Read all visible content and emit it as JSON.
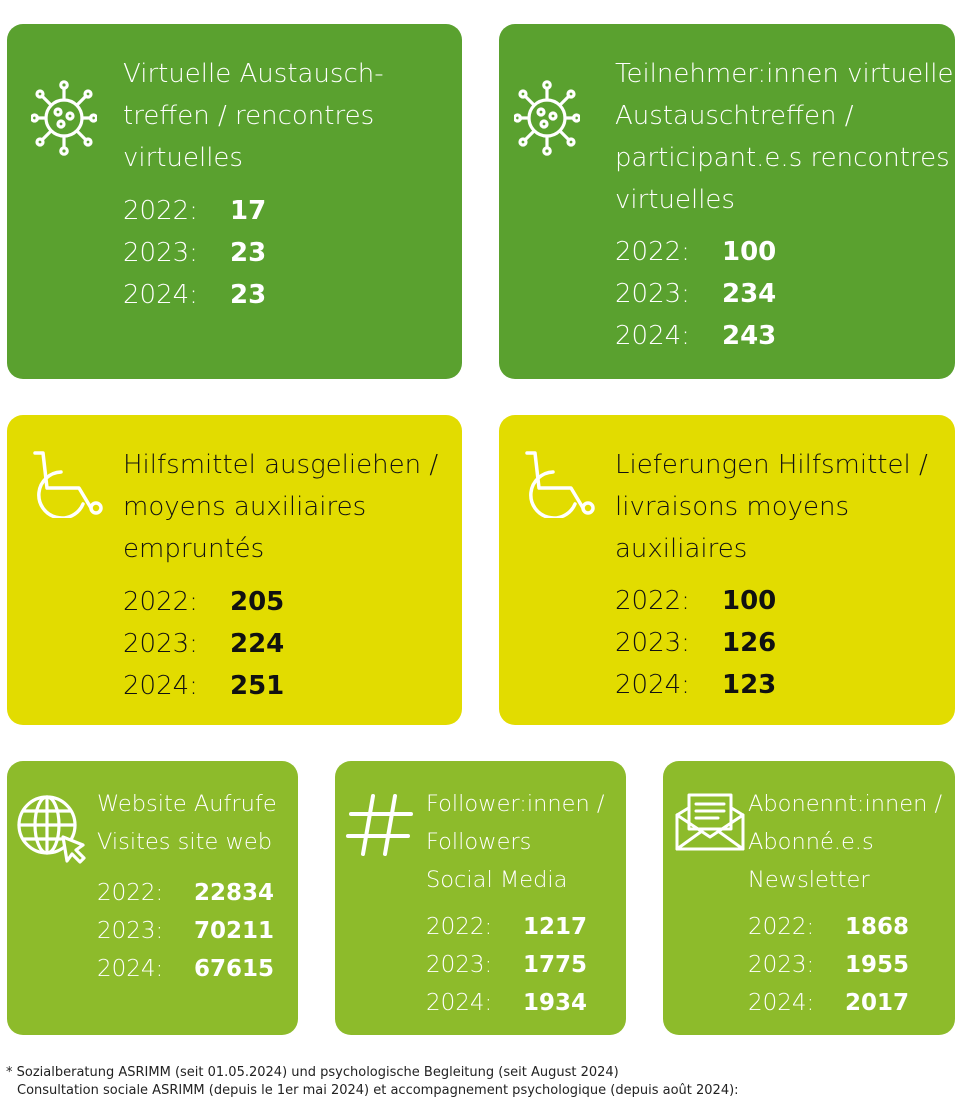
{
  "cards": [
    {
      "icon": "virus-icon",
      "title_lines": [
        "Virtuelle Austausch-",
        "treffen / rencontres",
        "virtuelles"
      ],
      "stats": [
        {
          "year": "2022:",
          "value": "17"
        },
        {
          "year": "2023:",
          "value": "23"
        },
        {
          "year": "2024:",
          "value": "23"
        }
      ]
    },
    {
      "icon": "virus-icon",
      "title_lines": [
        "Teilnehmer:innen virtuelle",
        "Austauschtreffen /",
        "participant.e.s rencontres",
        "virtuelles"
      ],
      "stats": [
        {
          "year": "2022:",
          "value": "100"
        },
        {
          "year": "2023:",
          "value": "234"
        },
        {
          "year": "2024:",
          "value": "243"
        }
      ]
    },
    {
      "icon": "wheelchair-icon",
      "title_lines": [
        "Hilfsmittel ausgeliehen /",
        "moyens auxiliaires",
        "empruntés"
      ],
      "stats": [
        {
          "year": "2022:",
          "value": "205"
        },
        {
          "year": "2023:",
          "value": "224"
        },
        {
          "year": "2024:",
          "value": "251"
        }
      ]
    },
    {
      "icon": "wheelchair-icon",
      "title_lines": [
        "Lieferungen Hilfsmittel /",
        "livraisons moyens",
        "auxiliaires"
      ],
      "stats": [
        {
          "year": "2022:",
          "value": "100"
        },
        {
          "year": "2023:",
          "value": "126"
        },
        {
          "year": "2024:",
          "value": "123"
        }
      ]
    },
    {
      "icon": "globe-cursor-icon",
      "title_lines": [
        "Website Aufrufe",
        "Visites site web"
      ],
      "stats": [
        {
          "year": "2022:",
          "value": "22834"
        },
        {
          "year": "2023:",
          "value": "70211"
        },
        {
          "year": "2024:",
          "value": "67615"
        }
      ]
    },
    {
      "icon": "hashtag-icon",
      "title_lines": [
        "Follower:innen /",
        "Followers",
        "Social Media"
      ],
      "stats": [
        {
          "year": "2022:",
          "value": "1217"
        },
        {
          "year": "2023:",
          "value": "1775"
        },
        {
          "year": "2024:",
          "value": "1934"
        }
      ]
    },
    {
      "icon": "envelope-icon",
      "title_lines": [
        "Abonennt:innen /",
        "Abonné.e.s",
        "Newsletter"
      ],
      "stats": [
        {
          "year": "2022:",
          "value": "1868"
        },
        {
          "year": "2023:",
          "value": "1955"
        },
        {
          "year": "2024:",
          "value": "2017"
        }
      ]
    }
  ],
  "footnote": {
    "line1": "* Sozialberatung ASRIMM (seit 01.05.2024) und psychologische Begleitung (seit August 2024)",
    "line2": "Consultation sociale ASRIMM (depuis le 1er mai 2024) et accompagnement psychologique (depuis août 2024):"
  },
  "colors": {
    "dark_green": "#5aa12f",
    "yellow": "#e2dc00",
    "light_green": "#8dbb2b"
  }
}
